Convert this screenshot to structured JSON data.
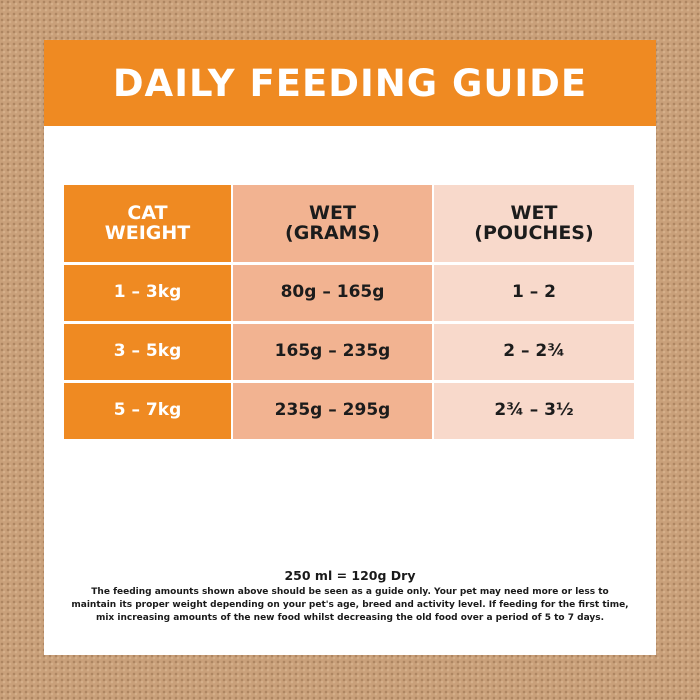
{
  "banner": {
    "title": "DAILY FEEDING GUIDE"
  },
  "table": {
    "headers": [
      "CAT\nWEIGHT",
      "WET\n(GRAMS)",
      "WET\n(POUCHES)"
    ],
    "rows": [
      {
        "weight": "1 – 3kg",
        "grams": "80g – 165g",
        "pouches": "1 – 2"
      },
      {
        "weight": "3 – 5kg",
        "grams": "165g – 235g",
        "pouches": "2 – 2¾"
      },
      {
        "weight": "5 – 7kg",
        "grams": "235g – 295g",
        "pouches": "2¾ – 3½"
      }
    ]
  },
  "footer": {
    "conversion": "250 ml = 120g Dry",
    "disclaimer_lines": [
      "The feeding amounts shown above should be seen as a guide only. Your pet may need more or less to",
      "maintain its proper weight depending on your pet's age, breed and activity level. If feeding for the first time,",
      "mix increasing amounts of the new food whilst decreasing the old food over a period of 5 to 7 days."
    ]
  },
  "colors": {
    "background": "#c9a07a",
    "accent_orange": "#ef8a22",
    "grams_column": "#f2b391",
    "pouches_column": "#f8d9cb",
    "text_dark": "#1c1c1c"
  }
}
